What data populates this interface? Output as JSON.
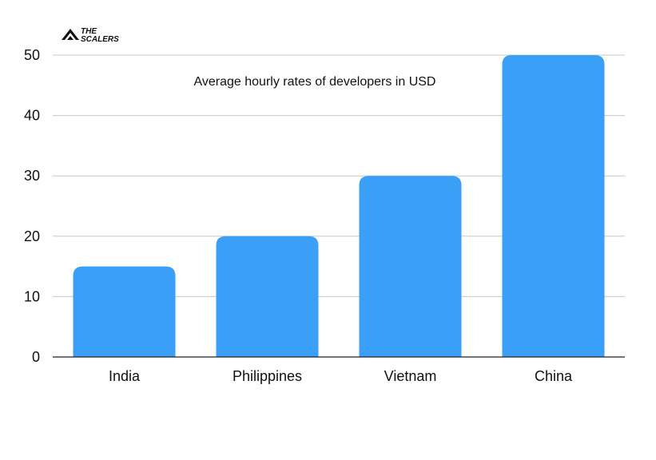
{
  "logo": {
    "line1": "THE",
    "line2": "SCALERS"
  },
  "chart_data": {
    "type": "bar",
    "title": "Average hourly rates of developers in USD",
    "categories": [
      "India",
      "Philippines",
      "Vietnam",
      "China"
    ],
    "values": [
      15,
      20,
      30,
      50
    ],
    "xlabel": "",
    "ylabel": "",
    "ylim": [
      0,
      50
    ],
    "yticks": [
      0,
      10,
      20,
      30,
      40,
      50
    ],
    "grid": true,
    "legend": "none",
    "bar_color": "#399FF7",
    "grid_color": "#c8c8c8",
    "axis_color": "#222222"
  }
}
